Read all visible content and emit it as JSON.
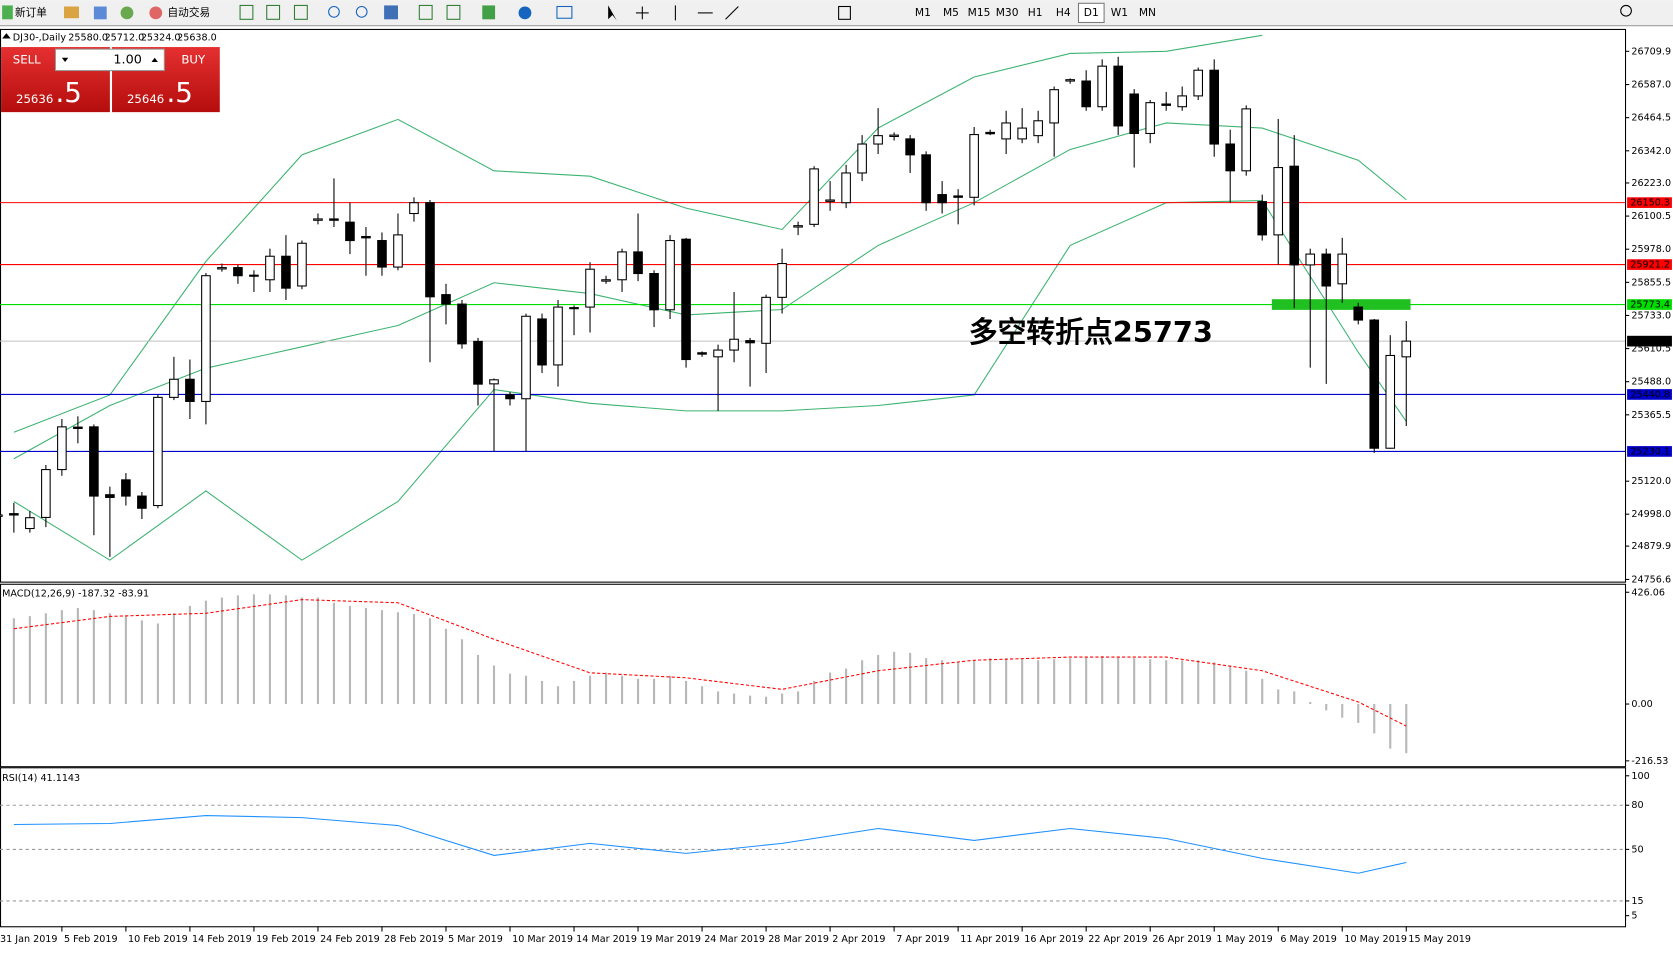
{
  "toolbar": {
    "new_order": "新订单",
    "auto_trading": "自动交易",
    "timeframes": [
      "M1",
      "M5",
      "M15",
      "M30",
      "H1",
      "H4",
      "D1",
      "W1",
      "MN"
    ],
    "active_timeframe": "D1"
  },
  "trade_panel": {
    "sell": "SELL",
    "buy": "BUY",
    "lots": "1.00",
    "sell_price": "25636",
    "sell_fraction": ".5",
    "buy_price": "25646",
    "buy_fraction": ".5"
  },
  "chart_data": [
    {
      "type": "candlestick",
      "title": "DJ30-,Daily",
      "ohlc_header": [
        "25580.0",
        "25712.0",
        "25324.0",
        "25638.0"
      ],
      "categories": [
        "31 Jan 2019",
        null,
        null,
        null,
        "5 Feb 2019",
        null,
        null,
        null,
        "10 Feb 2019",
        null,
        null,
        null,
        "14 Feb 2019",
        null,
        null,
        null,
        "19 Feb 2019",
        null,
        null,
        null,
        "24 Feb 2019",
        null,
        null,
        null,
        "28 Feb 2019",
        null,
        null,
        null,
        "5 Mar 2019",
        null,
        null,
        null,
        "10 Mar 2019",
        null,
        null,
        null,
        "14 Mar 2019",
        null,
        null,
        null,
        "19 Mar 2019",
        null,
        null,
        null,
        "24 Mar 2019",
        null,
        null,
        null,
        "28 Mar 2019",
        null,
        null,
        null,
        "2 Apr 2019",
        null,
        null,
        null,
        "7 Apr 2019",
        null,
        null,
        null,
        "11 Apr 2019",
        null,
        null,
        null,
        "16 Apr 2019",
        null,
        null,
        null,
        "22 Apr 2019",
        null,
        null,
        null,
        "26 Apr 2019",
        null,
        null,
        null,
        "1 May 2019",
        null,
        null,
        null,
        "6 May 2019",
        null,
        null,
        null,
        "10 May 2019",
        null,
        null,
        null,
        "15 May 2019"
      ],
      "open": [
        24990,
        25000,
        24945,
        24986,
        25163,
        25320,
        25321,
        25070,
        25125,
        25065,
        25030,
        25430,
        25497,
        25415,
        25905,
        25910,
        25882,
        25865,
        25952,
        25842,
        26085,
        26090,
        26078,
        26025,
        26010,
        25912,
        26110,
        26150,
        25810,
        25775,
        25637,
        25480,
        25440,
        25425,
        25720,
        25550,
        25762,
        25764,
        25860,
        25865,
        25968,
        25888,
        25754,
        26015,
        25595,
        25580,
        25605,
        25640,
        25630,
        25800,
        26060,
        26070,
        26155,
        26150,
        26260,
        26367,
        26395,
        26386,
        26327,
        26180,
        26175,
        26170,
        26410,
        26386,
        26386,
        26398,
        26445,
        26600,
        26600,
        26505,
        26655,
        26552,
        26406,
        26515,
        26505,
        26545,
        26640,
        26367,
        26268,
        26154,
        26031,
        26285,
        25920,
        25960,
        25850,
        25764,
        25716,
        25242,
        25580
      ],
      "high": [
        25010,
        25040,
        25010,
        25180,
        25350,
        25360,
        25330,
        25100,
        25150,
        25080,
        25440,
        25580,
        25570,
        25890,
        25925,
        25920,
        25900,
        25980,
        26030,
        26010,
        26110,
        26240,
        26150,
        26060,
        26040,
        26110,
        26170,
        26160,
        25850,
        25790,
        25650,
        25500,
        25450,
        25740,
        25740,
        25790,
        25770,
        25930,
        25880,
        25980,
        26110,
        25900,
        26030,
        26020,
        25600,
        25625,
        25820,
        25650,
        25810,
        25980,
        26080,
        26285,
        26230,
        26290,
        26400,
        26500,
        26410,
        26400,
        26340,
        26230,
        26200,
        26430,
        26420,
        26490,
        26500,
        26490,
        26580,
        26610,
        26640,
        26680,
        26690,
        26570,
        26530,
        26560,
        26580,
        26650,
        26680,
        26420,
        26510,
        26180,
        26460,
        26400,
        25980,
        25980,
        26020,
        25780,
        25720,
        25660,
        25712
      ],
      "low": [
        24960,
        24930,
        24930,
        24950,
        25140,
        25260,
        24920,
        24840,
        25030,
        24980,
        25020,
        25420,
        25350,
        25330,
        25895,
        25850,
        25820,
        25820,
        25790,
        25830,
        26070,
        26060,
        25960,
        25880,
        25880,
        25900,
        26080,
        25560,
        25700,
        25610,
        25400,
        25230,
        25400,
        25230,
        25520,
        25470,
        25660,
        25670,
        25850,
        25820,
        25860,
        25690,
        25720,
        25540,
        25580,
        25380,
        25560,
        25470,
        25520,
        25740,
        26030,
        26060,
        26120,
        26130,
        26230,
        26330,
        26380,
        26260,
        26120,
        26110,
        26070,
        26140,
        26400,
        26330,
        26370,
        26370,
        26320,
        26590,
        26490,
        26490,
        26400,
        26280,
        26370,
        26490,
        26490,
        26530,
        26320,
        26150,
        26250,
        26010,
        25920,
        25760,
        25540,
        25480,
        25780,
        25700,
        25225,
        25240,
        25324
      ],
      "close": [
        24995,
        24995,
        24985,
        25163,
        25321,
        25315,
        25065,
        25060,
        25065,
        25020,
        25430,
        25497,
        25415,
        25880,
        25910,
        25880,
        25878,
        25952,
        25834,
        26000,
        26090,
        26085,
        26010,
        26020,
        25912,
        26031,
        26150,
        25802,
        25775,
        25628,
        25479,
        25495,
        25425,
        25730,
        25550,
        25764,
        25758,
        25904,
        25865,
        25968,
        25888,
        25754,
        26010,
        25570,
        25590,
        25605,
        25645,
        25632,
        25800,
        25925,
        26065,
        26275,
        26160,
        26260,
        26367,
        26398,
        26400,
        26327,
        26150,
        26150,
        26170,
        26402,
        26405,
        26445,
        26426,
        26453,
        26568,
        26605,
        26505,
        26655,
        26434,
        26406,
        26520,
        26510,
        26545,
        26640,
        26367,
        26268,
        26497,
        26031,
        26280,
        25920,
        25960,
        25842,
        25960,
        25716,
        25242,
        25585,
        25638
      ],
      "up_color": "#ffffff",
      "down_color": "#000000",
      "ylim": [
        24756.6,
        26709.9
      ],
      "yticks": [
        26709.9,
        {
          "value": 26587.0,
          "label": "26587.0"
        },
        26464.5,
        {
          "value": 26342.0,
          "label": "26342.0"
        },
        {
          "value": 26223.0,
          "label": "26223.0"
        },
        26100.5,
        {
          "value": 25978.0,
          "label": "25978.0"
        },
        25855.5,
        {
          "value": 25733.0,
          "label": "25733.0"
        },
        25610.5,
        {
          "value": 25488.0,
          "label": "25488.0"
        },
        25365.5,
        {
          "value": 25120.0,
          "label": "25120.0"
        },
        {
          "value": 24998.0,
          "label": "24998.0"
        },
        24879.9,
        24756.6
      ],
      "bands": {
        "color": "#3cb371",
        "x": [
          1,
          7,
          13,
          19,
          25,
          31,
          37,
          43,
          49,
          55,
          61,
          67,
          73,
          79,
          85,
          88
        ],
        "upper": [
          25301,
          25439,
          25933,
          26327,
          26458,
          26268,
          26248,
          26130,
          26051,
          26426,
          26615,
          26702,
          26710,
          26769,
          null,
          null
        ],
        "middle": [
          25203,
          25400,
          25538,
          25617,
          25696,
          25854,
          25814,
          25735,
          25755,
          25992,
          26150,
          26347,
          26445,
          26426,
          26307,
          26161
        ],
        "lower": [
          25045,
          24828,
          25084,
          24828,
          25045,
          25459,
          25408,
          25380,
          25380,
          25400,
          25439,
          25992,
          26150,
          26158,
          25597,
          25341
        ]
      },
      "price_lines": [
        {
          "value": 26150.3,
          "color": "#ff0000"
        },
        {
          "value": 25921.2,
          "color": "#ff0000"
        },
        {
          "value": 25773.4,
          "color": "#00dd00"
        },
        {
          "value": 25638.0,
          "label": "25638.0",
          "color": "#c0c0c0",
          "box": "#000000"
        },
        {
          "value": 25440.8,
          "color": "#0000cc"
        },
        {
          "value": 25230.1,
          "color": "#0000cc"
        }
      ],
      "annotation": {
        "text": "多空转折点25773",
        "color": "#1fc01f"
      }
    },
    {
      "type": "bar",
      "title": "MACD(12,26,9) -187.32 -83.91",
      "color": "#b8b8b8",
      "values": [
        320,
        327,
        335,
        346,
        358,
        366,
        358,
        346,
        335,
        319,
        307,
        346,
        374,
        394,
        406,
        414,
        418,
        418,
        414,
        406,
        406,
        386,
        374,
        366,
        358,
        350,
        343,
        327,
        287,
        247,
        187,
        147,
        116,
        108,
        88,
        68,
        88,
        108,
        120,
        108,
        96,
        96,
        108,
        88,
        68,
        48,
        40,
        32,
        28,
        40,
        48,
        88,
        120,
        135,
        167,
        187,
        199,
        195,
        175,
        167,
        159,
        167,
        175,
        175,
        171,
        167,
        171,
        175,
        179,
        183,
        179,
        175,
        171,
        167,
        167,
        167,
        159,
        147,
        127,
        96,
        56,
        48,
        8,
        -24,
        -52,
        -72,
        -112,
        -170,
        -187.32
      ],
      "signal": {
        "color": "#ff0000",
        "x": [
          1,
          7,
          13,
          19,
          25,
          31,
          37,
          43,
          49,
          55,
          61,
          67,
          73,
          79,
          85,
          88
        ],
        "values": [
          287,
          334,
          346,
          398,
          386,
          247,
          119,
          100,
          56,
          127,
          167,
          179,
          179,
          127,
          8,
          -83.91
        ]
      },
      "ylim": [
        -216.53,
        426.06
      ],
      "yticks": [
        426.06,
        {
          "value": 0,
          "label": "0.00"
        },
        -216.53
      ]
    },
    {
      "type": "line",
      "title": "RSI(14) 41.1143",
      "color": "#1e90ff",
      "x": [
        1,
        7,
        13,
        19,
        25,
        31,
        37,
        43,
        49,
        55,
        61,
        67,
        73,
        79,
        85,
        88
      ],
      "values": [
        66.9,
        67.6,
        73,
        71.6,
        66.2,
        45.9,
        54.1,
        47.3,
        54.1,
        64.2,
        56.1,
        64.2,
        57.4,
        43.9,
        33.8,
        41.1143
      ],
      "ylim": [
        0,
        100
      ],
      "yticks": [
        100,
        80,
        50,
        15,
        5
      ],
      "levels": [
        80,
        50,
        15
      ]
    }
  ]
}
